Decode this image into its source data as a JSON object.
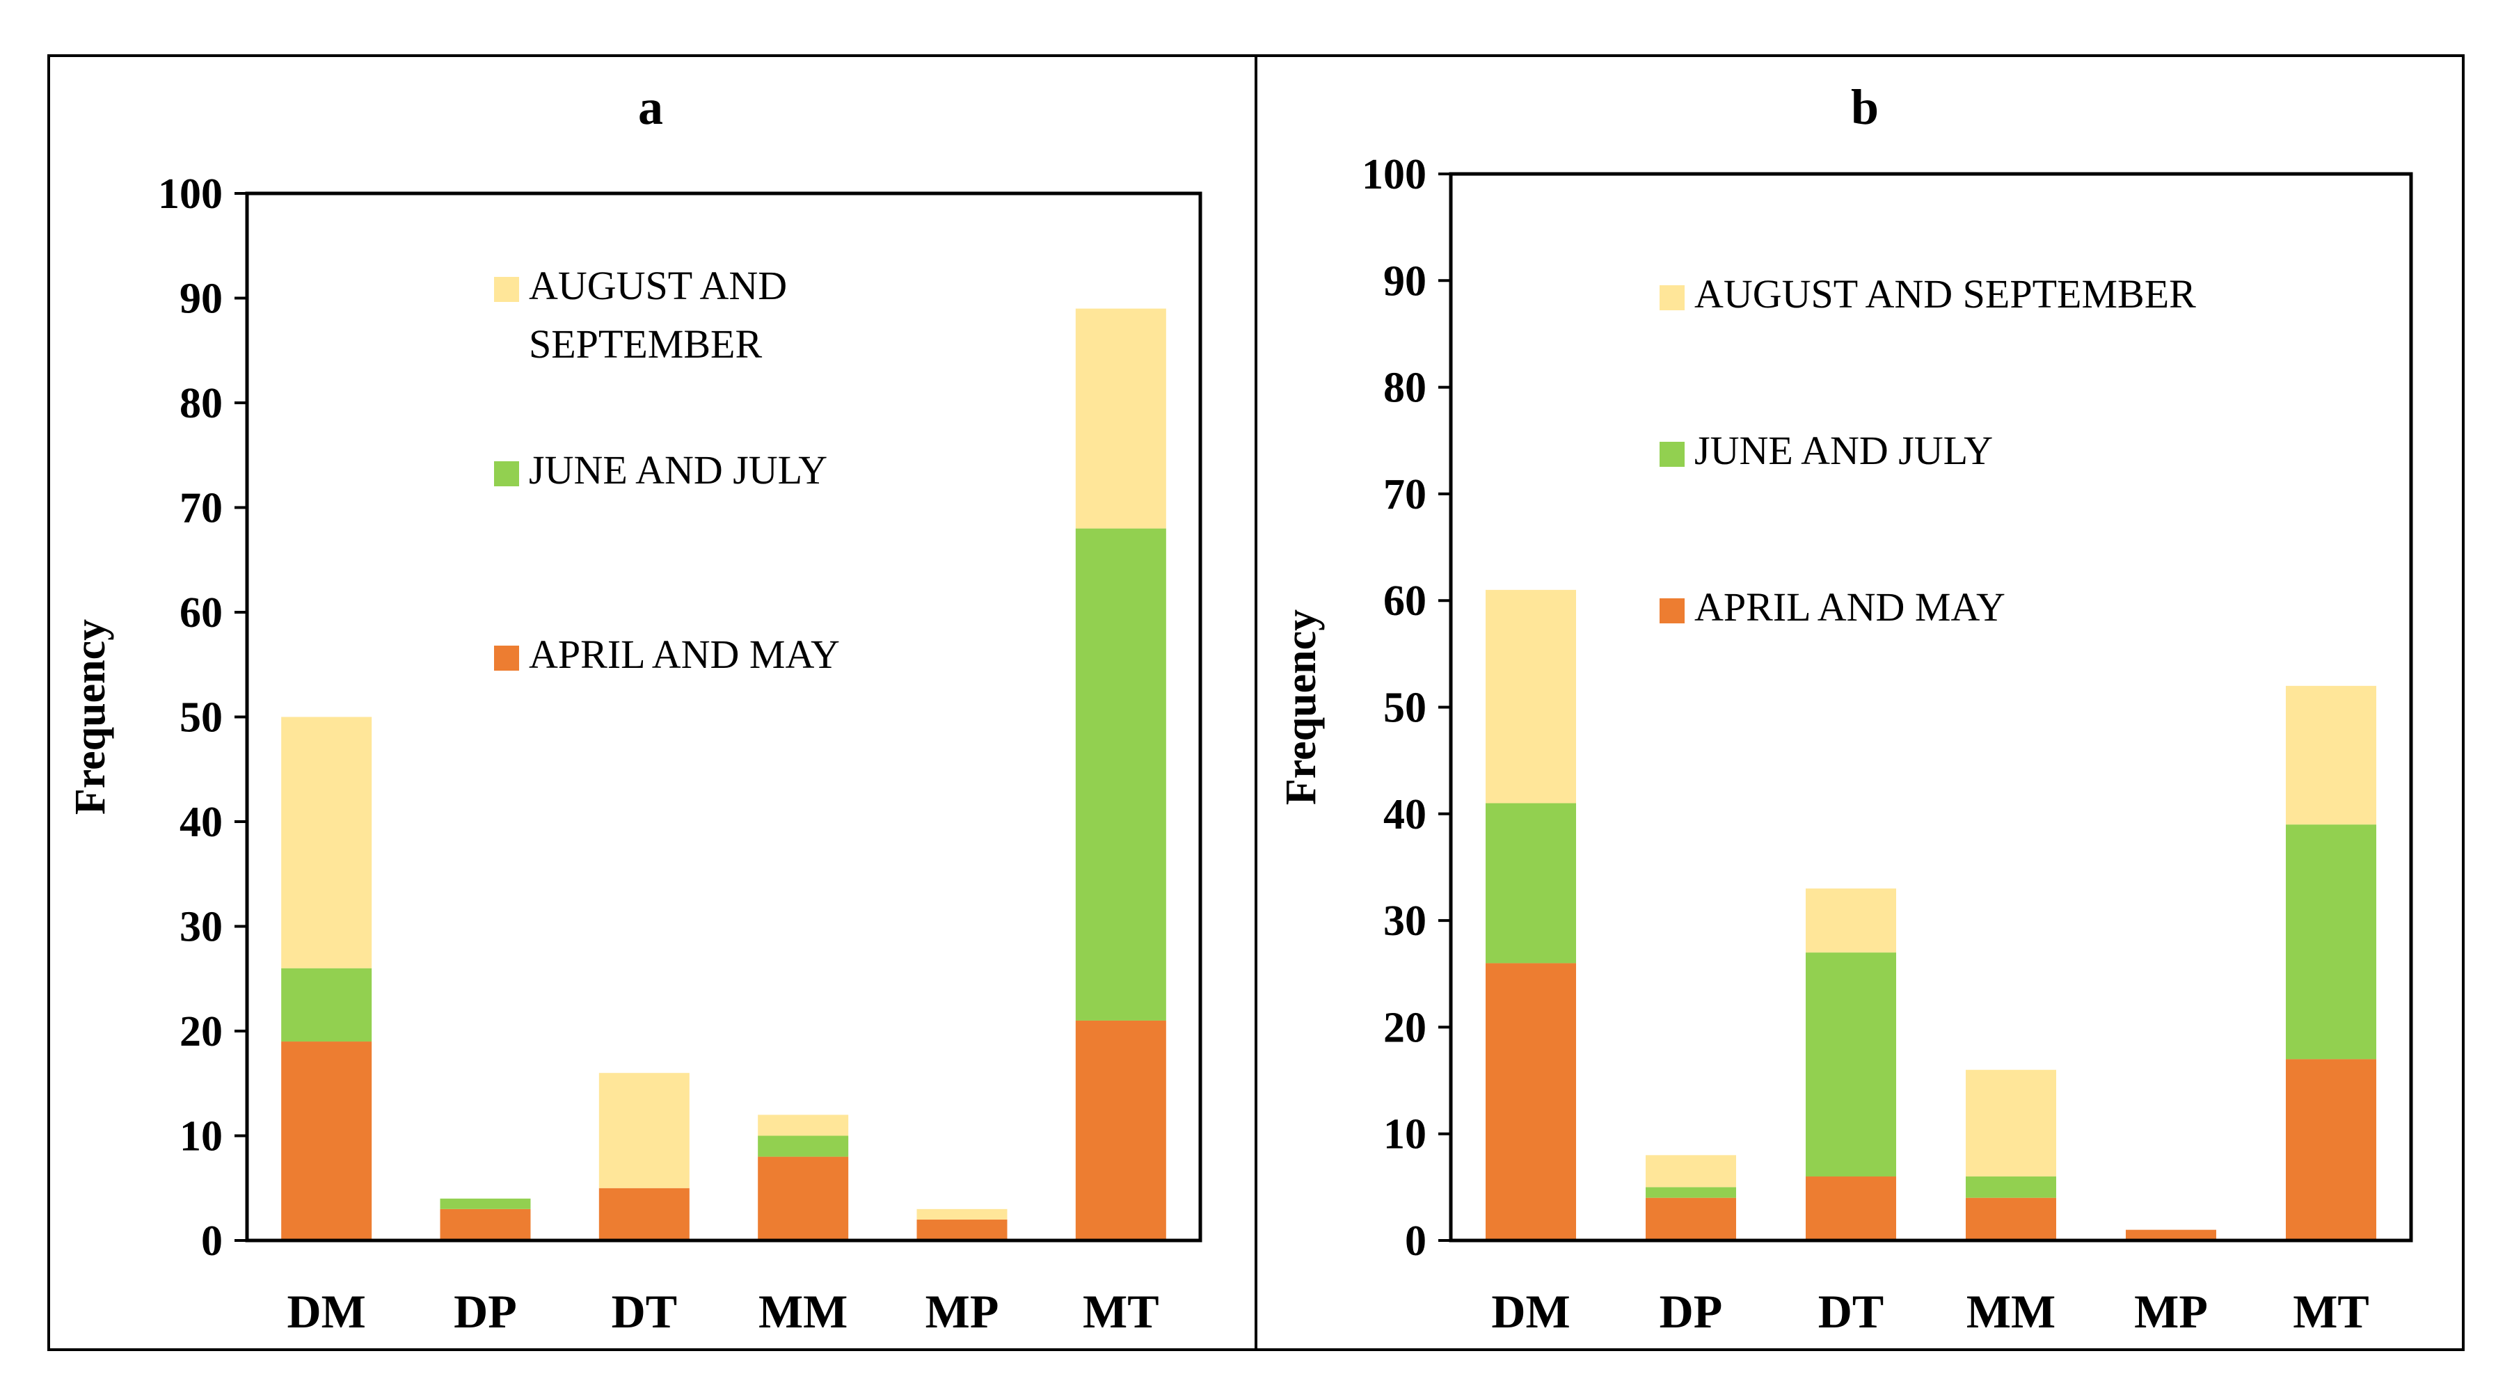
{
  "chart_data": [
    {
      "type": "bar",
      "stacked": true,
      "title": "a",
      "ylabel": "Frequency",
      "xlabel": "",
      "ylim": [
        0,
        100
      ],
      "yticks": [
        "0",
        "10",
        "20",
        "30",
        "40",
        "50",
        "60",
        "70",
        "80",
        "90",
        "100"
      ],
      "categories": [
        "DM",
        "DP",
        "DT",
        "MM",
        "MP",
        "MT"
      ],
      "series": [
        {
          "name": "APRIL AND MAY",
          "color": "#ED7D31",
          "values": [
            19,
            3,
            5,
            8,
            2,
            21
          ]
        },
        {
          "name": "JUNE AND JULY",
          "color": "#92D050",
          "values": [
            7,
            1,
            0,
            2,
            0,
            47
          ]
        },
        {
          "name": "AUGUST AND SEPTEMBER",
          "color": "#FFE699",
          "values": [
            24,
            0,
            11,
            2,
            1,
            21
          ]
        }
      ],
      "legend": {
        "position": "top-center",
        "order": [
          "AUGUST AND SEPTEMBER",
          "JUNE AND JULY",
          "APRIL AND MAY"
        ],
        "lines": [
          [
            "AUGUST AND",
            "SEPTEMBER"
          ],
          [
            "JUNE AND JULY"
          ],
          [
            "APRIL AND MAY"
          ]
        ]
      }
    },
    {
      "type": "bar",
      "stacked": true,
      "title": "b",
      "ylabel": "Frequency",
      "xlabel": "",
      "ylim": [
        0,
        100
      ],
      "yticks": [
        "0",
        "10",
        "20",
        "30",
        "40",
        "50",
        "60",
        "70",
        "80",
        "90",
        "100"
      ],
      "categories": [
        "DM",
        "DP",
        "DT",
        "MM",
        "MP",
        "MT"
      ],
      "series": [
        {
          "name": "APRIL AND MAY",
          "color": "#ED7D31",
          "values": [
            26,
            4,
            6,
            4,
            1,
            17
          ]
        },
        {
          "name": "JUNE AND JULY",
          "color": "#92D050",
          "values": [
            15,
            1,
            21,
            2,
            0,
            22
          ]
        },
        {
          "name": "AUGUST AND SEPTEMBER",
          "color": "#FFE699",
          "values": [
            20,
            3,
            6,
            10,
            0,
            13
          ]
        }
      ],
      "legend": {
        "position": "top-center",
        "order": [
          "AUGUST AND SEPTEMBER",
          "JUNE AND JULY",
          "APRIL AND MAY"
        ],
        "lines": [
          [
            "AUGUST AND SEPTEMBER"
          ],
          [
            "JUNE AND JULY"
          ],
          [
            "APRIL AND MAY"
          ]
        ]
      }
    }
  ]
}
